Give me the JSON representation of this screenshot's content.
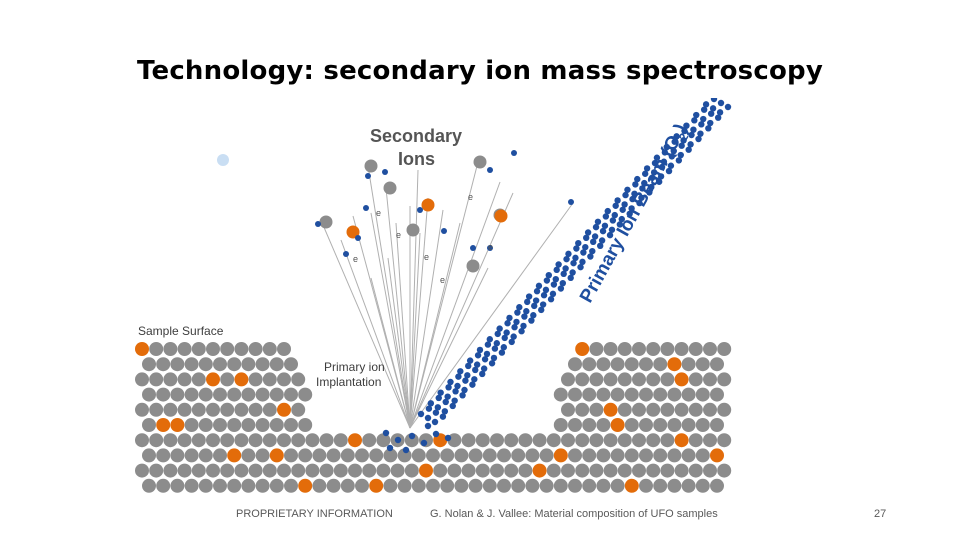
{
  "slide": {
    "title": "Technology: secondary ion mass spectroscopy"
  },
  "diagram": {
    "labels": {
      "secondary_ions_line1": "Secondary",
      "secondary_ions_line2": "Ions",
      "sample_surface": "Sample Surface",
      "implantation_line1": "Primary ion",
      "implantation_line2": "Implantation",
      "beam": "Primary Ion Beam (O",
      "beam_subscript": "2",
      "beam_close": ")",
      "electron": "e"
    },
    "colors": {
      "substrate_atom": "#8c8c8c",
      "dopant_atom": "#e36c0a",
      "primary_ion": "#1f4fa0",
      "trajectory_line": "#b0b0b0"
    }
  },
  "footer": {
    "left": "PROPRIETARY INFORMATION",
    "center": "G. Nolan & J. Vallee: Material composition of UFO samples",
    "page_number": "27"
  }
}
